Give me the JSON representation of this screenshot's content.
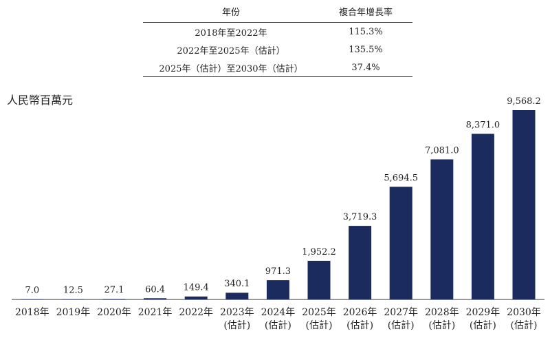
{
  "table": {
    "headers": [
      "年份",
      "複合年增長率"
    ],
    "rows": [
      {
        "period": "2018年至2022年",
        "cagr": "115.3%"
      },
      {
        "period": "2022年至2025年（估計）",
        "cagr": "135.5%"
      },
      {
        "period": "2025年（估計）至2030年（估計）",
        "cagr": "37.4%"
      }
    ]
  },
  "chart_data": {
    "type": "bar",
    "ylabel": "人民幣百萬元",
    "categories": [
      "2018年",
      "2019年",
      "2020年",
      "2021年",
      "2022年",
      "2023年",
      "2024年",
      "2025年",
      "2026年",
      "2027年",
      "2028年",
      "2029年",
      "2030年"
    ],
    "estimate_note": [
      "",
      "",
      "",
      "",
      "",
      "(估計)",
      "(估計)",
      "(估計)",
      "(估計)",
      "(估計)",
      "(估計)",
      "(估計)",
      "(估計)"
    ],
    "values": [
      7.0,
      12.5,
      27.1,
      60.4,
      149.4,
      340.1,
      971.3,
      1952.2,
      3719.3,
      5694.5,
      7081.0,
      8371.0,
      9568.2
    ],
    "value_labels": [
      "7.0",
      "12.5",
      "27.1",
      "60.4",
      "149.4",
      "340.1",
      "971.3",
      "1,952.2",
      "3,719.3",
      "5,694.5",
      "7,081.0",
      "8,371.0",
      "9,568.2"
    ],
    "ylim": [
      0,
      9568.2
    ],
    "bar_color": "#1c2b5e"
  }
}
